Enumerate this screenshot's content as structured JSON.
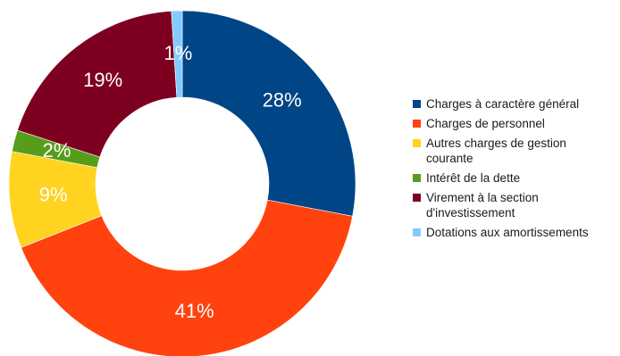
{
  "chart_data": {
    "type": "pie",
    "variant": "donut",
    "categories": [
      "Charges à caractère général",
      "Charges de personnel",
      "Autres charges de gestion courante",
      "Intérêt de la dette",
      "Virement à la section d'investissement",
      "Dotations aux amortissements"
    ],
    "values": [
      28,
      41,
      9,
      2,
      19,
      1
    ],
    "value_labels": [
      "28%",
      "41%",
      "9%",
      "2%",
      "19%",
      "1%"
    ],
    "colors": [
      "#004586",
      "#ff420e",
      "#ffd320",
      "#579d1c",
      "#7e0021",
      "#83caff"
    ],
    "legend": {
      "position": "right",
      "entries": [
        {
          "lines": [
            "Charges à caractère général"
          ]
        },
        {
          "lines": [
            "Charges de personnel"
          ]
        },
        {
          "lines": [
            "Autres charges de gestion",
            "courante"
          ]
        },
        {
          "lines": [
            "Intérêt de la dette"
          ]
        },
        {
          "lines": [
            "Virement à la section",
            "d'investissement"
          ]
        },
        {
          "lines": [
            "Dotations aux amortissements"
          ]
        }
      ]
    },
    "start_angle_deg": 0,
    "direction": "clockwise"
  }
}
